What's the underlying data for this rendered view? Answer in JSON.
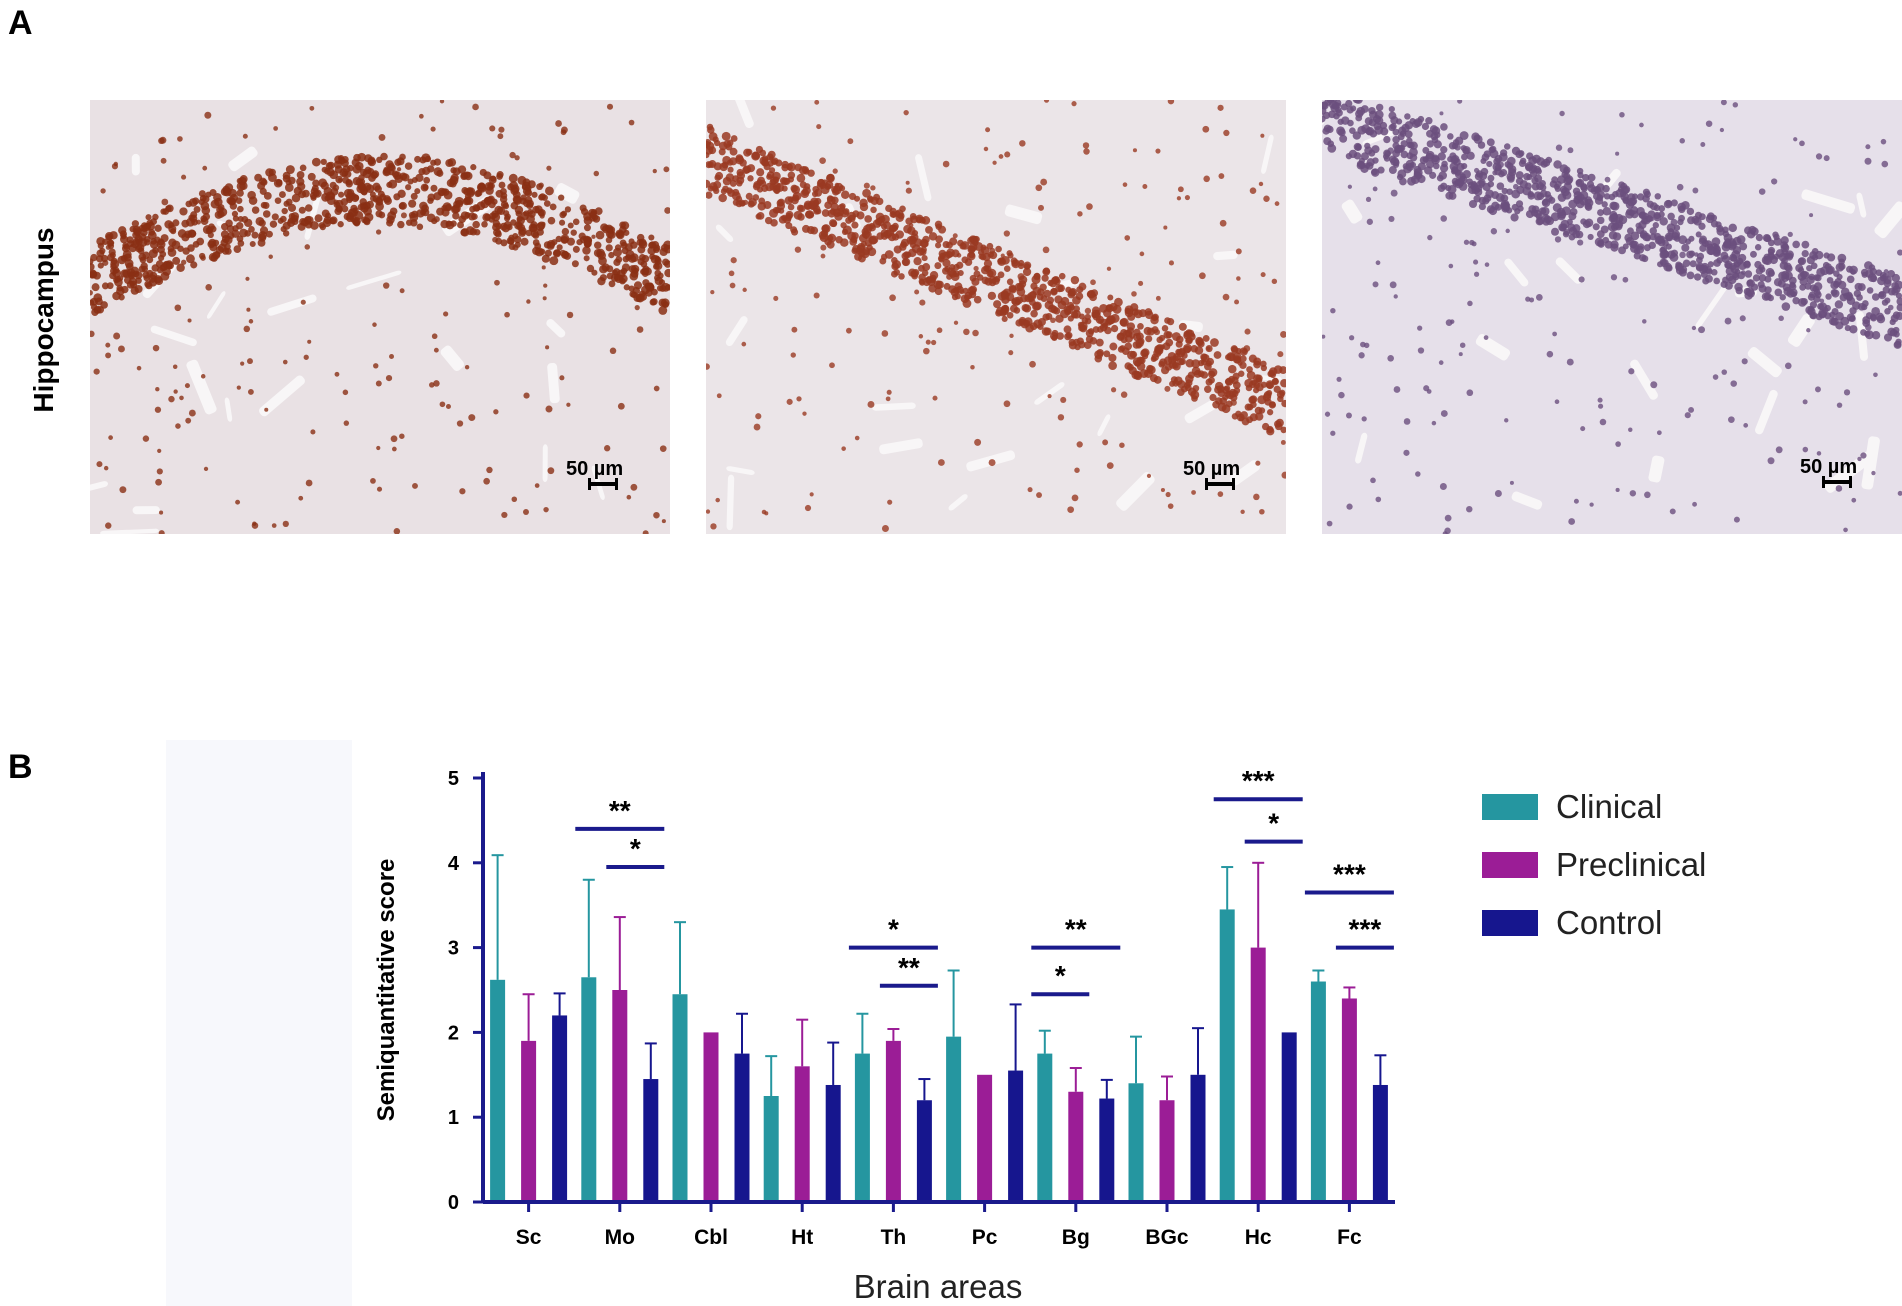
{
  "panels": {
    "a_label": "A",
    "b_label": "B"
  },
  "micrographs": {
    "row_label": "Hippocampus",
    "scale_labels": [
      "50 µm",
      "50 µm",
      "50 µm"
    ],
    "stain_intensity": [
      "strong",
      "moderate",
      "weak"
    ]
  },
  "colors": {
    "clinical": "#2596a0",
    "preclinical": "#9b1d96",
    "control": "#16168e",
    "axis": "#1a1a8c"
  },
  "chart_data": {
    "type": "bar",
    "xlabel": "Brain areas",
    "ylabel": "Semiquantitative score",
    "ylim": [
      0,
      5
    ],
    "yticks": [
      0,
      1,
      2,
      3,
      4,
      5
    ],
    "categories": [
      "Sc",
      "Mo",
      "Cbl",
      "Ht",
      "Th",
      "Pc",
      "Bg",
      "BGc",
      "Hc",
      "Fc"
    ],
    "series": [
      {
        "name": "Clinical",
        "values": [
          2.62,
          2.65,
          2.45,
          1.25,
          1.75,
          1.95,
          1.75,
          1.4,
          3.45,
          2.6
        ],
        "errors": [
          1.47,
          1.15,
          0.85,
          0.47,
          0.47,
          0.78,
          0.27,
          0.55,
          0.5,
          0.13
        ]
      },
      {
        "name": "Preclinical",
        "values": [
          1.9,
          2.5,
          2.0,
          1.6,
          1.9,
          1.5,
          1.3,
          1.2,
          3.0,
          2.4
        ],
        "errors": [
          0.55,
          0.86,
          0.0,
          0.55,
          0.14,
          0.0,
          0.28,
          0.28,
          1.0,
          0.13
        ]
      },
      {
        "name": "Control",
        "values": [
          2.2,
          1.45,
          1.75,
          1.38,
          1.2,
          1.55,
          1.22,
          1.5,
          2.0,
          1.38
        ],
        "errors": [
          0.26,
          0.42,
          0.47,
          0.5,
          0.25,
          0.78,
          0.22,
          0.55,
          0.0,
          0.35
        ]
      }
    ],
    "significance": [
      {
        "category": "Mo",
        "from": "Clinical",
        "to": "Control",
        "label": "**",
        "y": 4.4
      },
      {
        "category": "Mo",
        "from": "Preclinical",
        "to": "Control",
        "label": "*",
        "y": 3.95
      },
      {
        "category": "Th",
        "from": "Clinical",
        "to": "Control",
        "label": "*",
        "y": 3.0
      },
      {
        "category": "Th",
        "from": "Preclinical",
        "to": "Control",
        "label": "**",
        "y": 2.55
      },
      {
        "category": "Bg",
        "from": "Clinical",
        "to": "Control",
        "label": "**",
        "y": 3.0
      },
      {
        "category": "Bg",
        "from": "Clinical",
        "to": "Preclinical",
        "label": "*",
        "y": 2.45
      },
      {
        "category": "Hc",
        "from": "Clinical",
        "to": "Control",
        "label": "***",
        "y": 4.75
      },
      {
        "category": "Hc",
        "from": "Preclinical",
        "to": "Control",
        "label": "*",
        "y": 4.25
      },
      {
        "category": "Fc",
        "from": "Clinical",
        "to": "Control",
        "label": "***",
        "y": 3.65
      },
      {
        "category": "Fc",
        "from": "Preclinical",
        "to": "Control",
        "label": "***",
        "y": 3.0
      }
    ],
    "legend_position": "right"
  }
}
